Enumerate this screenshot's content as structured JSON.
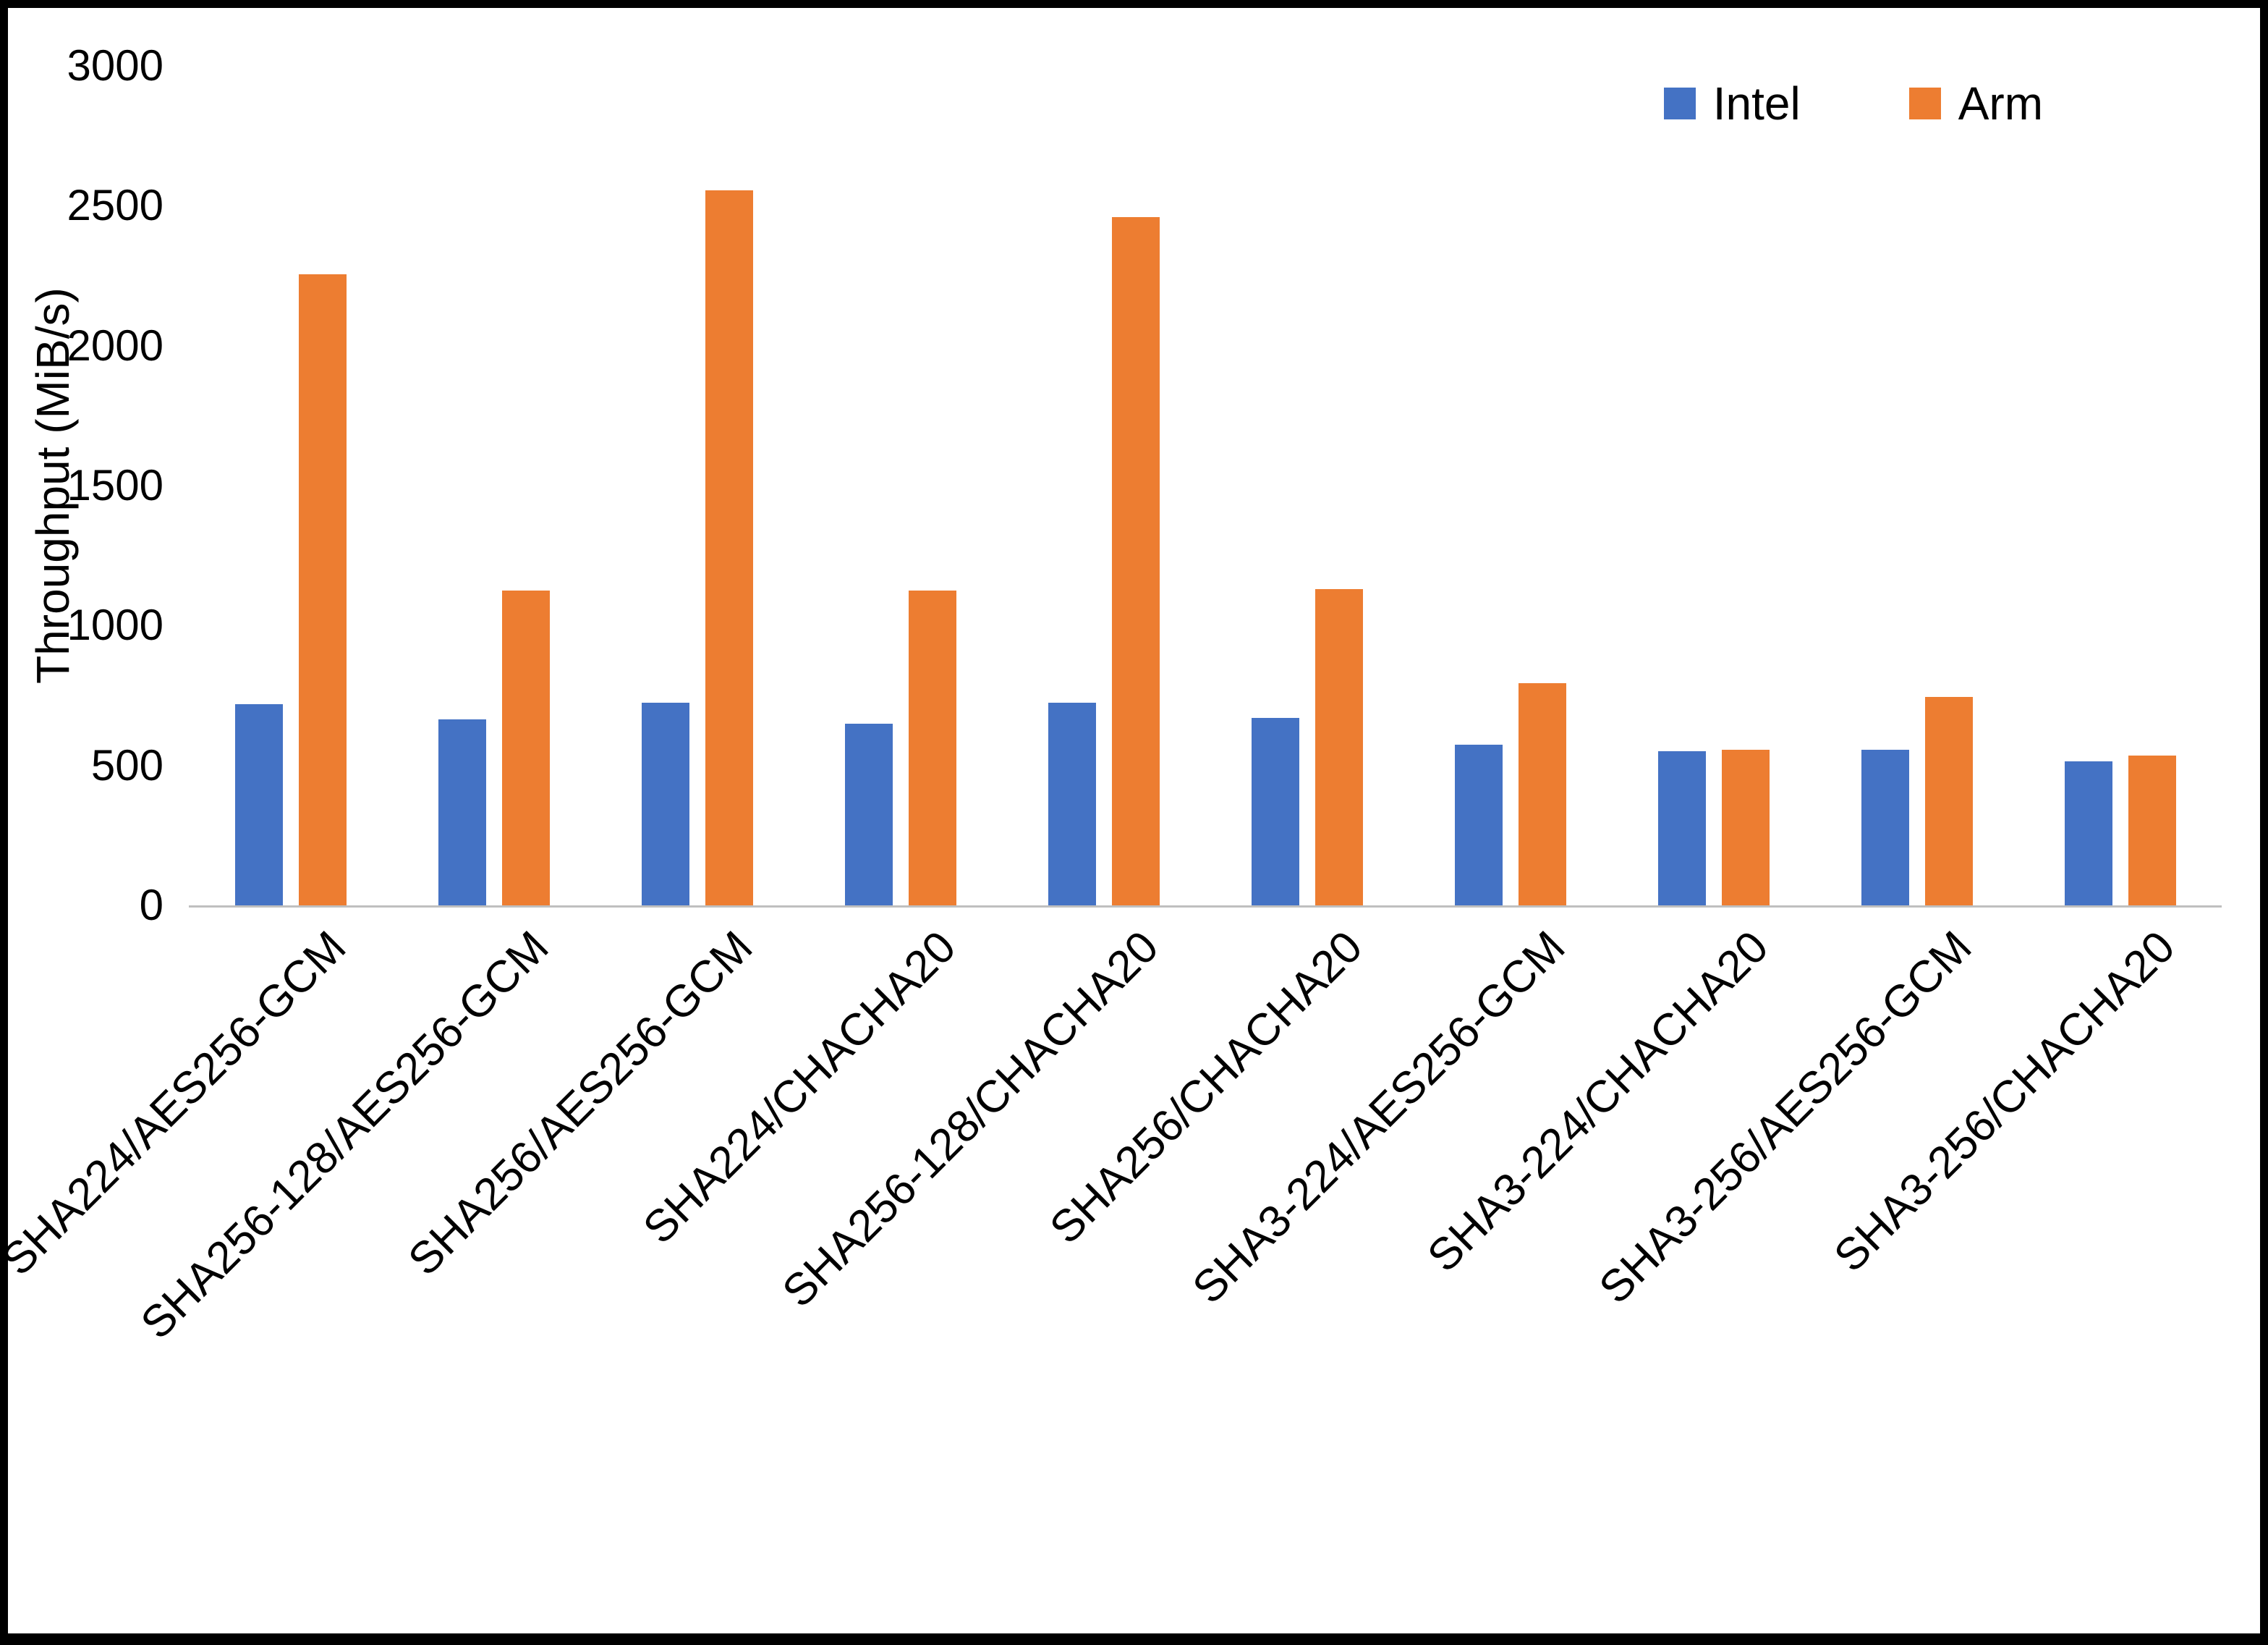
{
  "chart_data": {
    "type": "bar",
    "title": "",
    "xlabel": "",
    "ylabel": "Throughput (MiB/s)",
    "ylim": [
      0,
      3000
    ],
    "yticks": [
      0,
      500,
      1000,
      1500,
      2000,
      2500,
      3000
    ],
    "grid": false,
    "legend_position": "top-right",
    "categories": [
      "SHA224/AES256-GCM",
      "SHA256-128/AES256-GCM",
      "SHA256/AES256-GCM",
      "SHA224/CHACHA20",
      "SHA256-128/CHACHA20",
      "SHA256/CHACHA20",
      "SHA3-224/AES256-GCM",
      "SHA3-224/CHACHA20",
      "SHA3-256/AES256-GCM",
      "SHA3-256/CHACHA20"
    ],
    "series": [
      {
        "name": "Intel",
        "color": "#4472C4",
        "values": [
          720,
          665,
          725,
          650,
          725,
          670,
          575,
          550,
          555,
          515
        ]
      },
      {
        "name": "Arm",
        "color": "#ED7D31",
        "values": [
          2255,
          1125,
          2555,
          1125,
          2460,
          1130,
          795,
          555,
          745,
          535
        ]
      }
    ]
  }
}
